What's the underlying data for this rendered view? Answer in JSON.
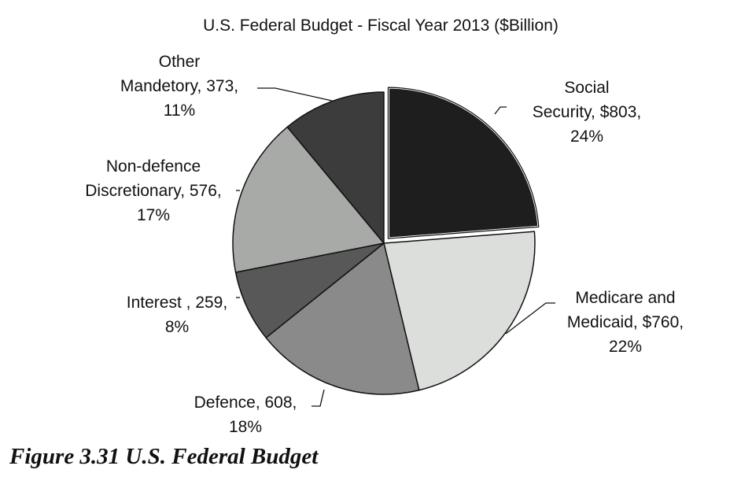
{
  "chart_data": {
    "type": "pie",
    "title": "U.S. Federal Budget - Fiscal Year 2013 ($Billion)",
    "slices": [
      {
        "name": "Social Security",
        "value": 803,
        "percent": 24,
        "color": "#1e1e1e",
        "label_lines": [
          "Social",
          "Security, $803,",
          "24%"
        ]
      },
      {
        "name": "Medicare and Medicaid",
        "value": 760,
        "percent": 22,
        "color": "#dcdedc",
        "label_lines": [
          "Medicare and",
          "Medicaid, $760,",
          "22%"
        ]
      },
      {
        "name": "Defence",
        "value": 608,
        "percent": 18,
        "color": "#8a8a8a",
        "label_lines": [
          "Defence, 608,",
          "18%"
        ]
      },
      {
        "name": "Interest",
        "value": 259,
        "percent": 8,
        "color": "#585858",
        "label_lines": [
          "Interest , 259,",
          "8%"
        ]
      },
      {
        "name": "Non-defence Discretionary",
        "value": 576,
        "percent": 17,
        "color": "#a8aaa8",
        "label_lines": [
          "Non-defence",
          "Discretionary, 576,",
          "17%"
        ]
      },
      {
        "name": "Other Mandetory",
        "value": 373,
        "percent": 11,
        "color": "#3c3c3c",
        "label_lines": [
          "Other",
          "Mandetory, 373,",
          "11%"
        ]
      }
    ],
    "exploded": [
      "Social Security"
    ],
    "legend": "none"
  },
  "caption": "Figure 3.31  U.S. Federal Budget"
}
